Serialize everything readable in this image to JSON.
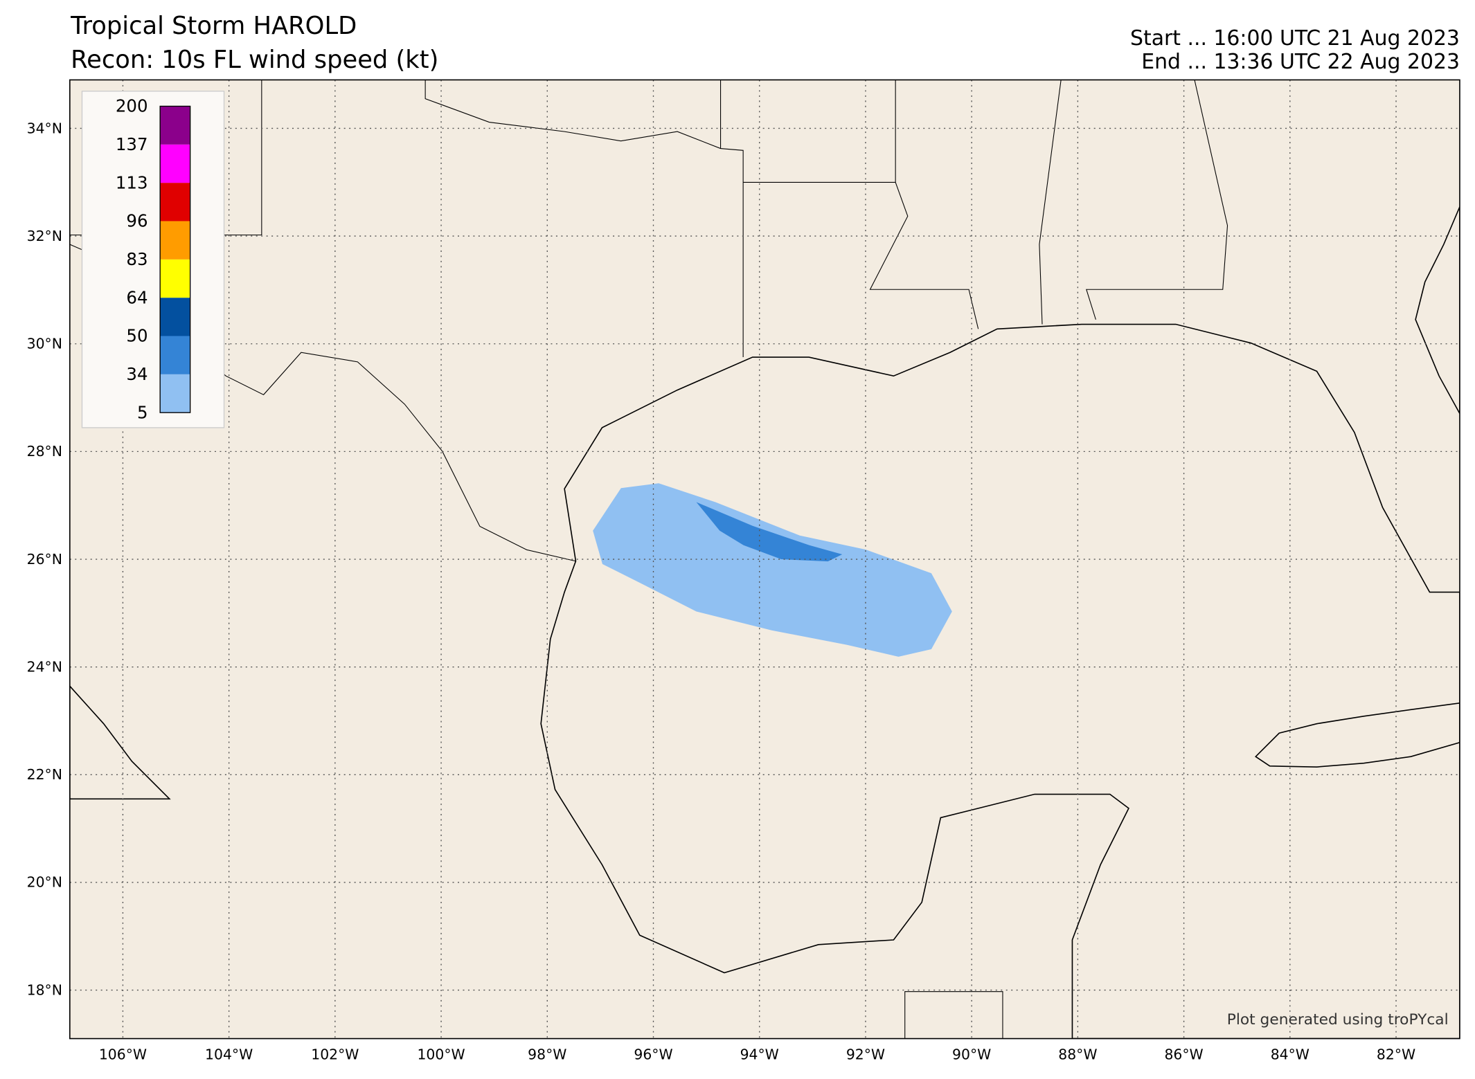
{
  "chart_data": {
    "type": "map",
    "title": "Tropical Storm HAROLD",
    "subtitle": "Recon: 10s FL wind speed (kt)",
    "start": "Start ... 16:00 UTC 21 Aug 2023",
    "end": "End ... 13:36 UTC 22 Aug 2023",
    "credit": "Plot generated using troPYcal",
    "xlim": [
      -107,
      -80.8
    ],
    "ylim": [
      17.1,
      34.9
    ],
    "xticks": [
      {
        "value": -106,
        "label": "106°W"
      },
      {
        "value": -104,
        "label": "104°W"
      },
      {
        "value": -102,
        "label": "102°W"
      },
      {
        "value": -100,
        "label": "100°W"
      },
      {
        "value": -98,
        "label": "98°W"
      },
      {
        "value": -96,
        "label": "96°W"
      },
      {
        "value": -94,
        "label": "94°W"
      },
      {
        "value": -92,
        "label": "92°W"
      },
      {
        "value": -90,
        "label": "90°W"
      },
      {
        "value": -88,
        "label": "88°W"
      },
      {
        "value": -86,
        "label": "86°W"
      },
      {
        "value": -84,
        "label": "84°W"
      },
      {
        "value": -82,
        "label": "82°W"
      }
    ],
    "yticks": [
      {
        "value": 18,
        "label": "18°N"
      },
      {
        "value": 20,
        "label": "20°N"
      },
      {
        "value": 22,
        "label": "22°N"
      },
      {
        "value": 24,
        "label": "24°N"
      },
      {
        "value": 26,
        "label": "26°N"
      },
      {
        "value": 28,
        "label": "28°N"
      },
      {
        "value": 30,
        "label": "30°N"
      },
      {
        "value": 32,
        "label": "32°N"
      },
      {
        "value": 34,
        "label": "34°N"
      }
    ],
    "grid": true,
    "colorbar": {
      "levels": [
        5,
        34,
        50,
        64,
        83,
        96,
        113,
        137,
        200
      ],
      "colors": [
        "#90c0f2",
        "#3484d6",
        "#03509f",
        "#ffff00",
        "#ff9c00",
        "#e00000",
        "#ff00ff",
        "#8b008b"
      ]
    },
    "swath": [
      {
        "color": "#90c0f2",
        "lon": [
          -97.14,
          -96.61,
          -95.9,
          -94.83,
          -93.24,
          -92.0,
          -90.76,
          -90.37,
          -90.76,
          -91.38,
          -92.35,
          -93.77,
          -95.19,
          -96.25,
          -96.96
        ],
        "lat": [
          26.53,
          27.32,
          27.41,
          27.06,
          26.44,
          26.18,
          25.74,
          25.03,
          24.33,
          24.19,
          24.41,
          24.68,
          25.03,
          25.56,
          25.91
        ]
      },
      {
        "color": "#3484d6",
        "lon": [
          -95.19,
          -94.13,
          -93.06,
          -92.44,
          -92.71,
          -93.59,
          -94.3,
          -94.75
        ],
        "lat": [
          27.06,
          26.62,
          26.26,
          26.09,
          25.96,
          26.0,
          26.26,
          26.53
        ]
      }
    ]
  }
}
